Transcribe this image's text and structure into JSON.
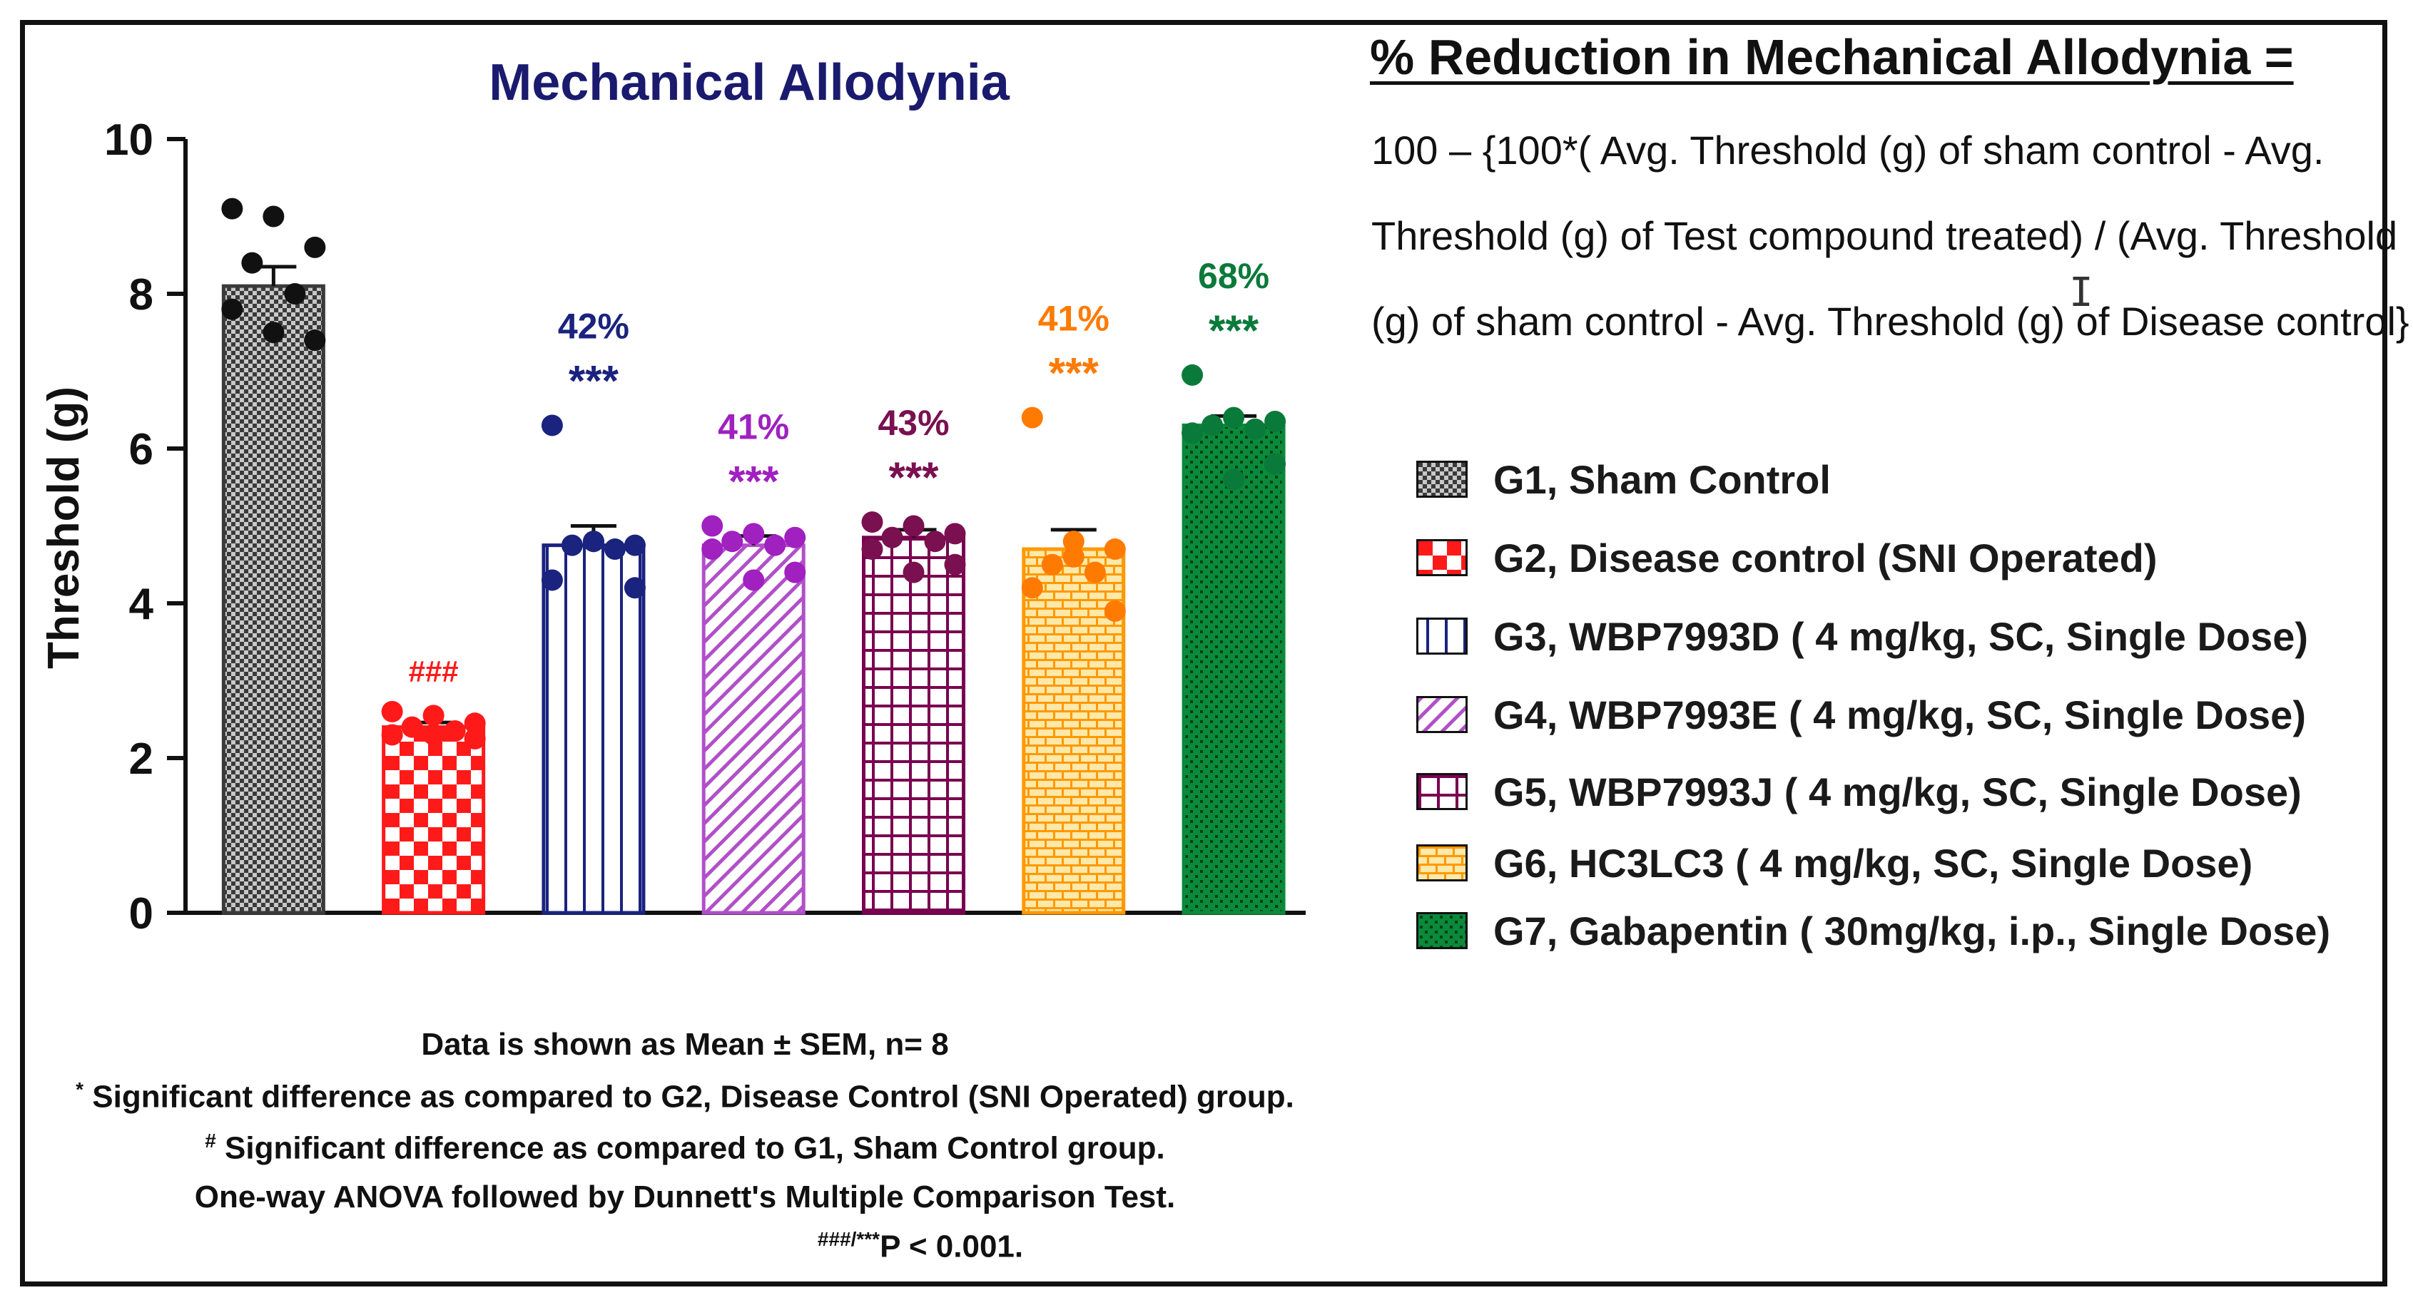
{
  "chart_data": {
    "type": "bar",
    "title": "Mechanical Allodynia",
    "xlabel": "",
    "ylabel": "Threshold (g)",
    "ylim": [
      0,
      10
    ],
    "yticks": [
      0,
      2,
      4,
      6,
      8,
      10
    ],
    "categories": [
      "G1",
      "G2",
      "G3",
      "G4",
      "G5",
      "G6",
      "G7"
    ],
    "values": [
      8.1,
      2.4,
      4.75,
      4.75,
      4.85,
      4.7,
      6.3
    ],
    "sem": [
      0.25,
      0.06,
      0.25,
      0.12,
      0.1,
      0.25,
      0.12
    ],
    "points": [
      [
        9.1,
        9.0,
        8.6,
        8.4,
        8.0,
        7.8,
        7.4,
        7.5
      ],
      [
        2.6,
        2.55,
        2.45,
        2.4,
        2.35,
        2.3,
        2.25,
        2.3
      ],
      [
        6.3,
        4.8,
        4.75,
        4.75,
        4.7,
        4.3,
        4.2,
        4.8
      ],
      [
        5.0,
        4.9,
        4.85,
        4.8,
        4.75,
        4.7,
        4.4,
        4.3
      ],
      [
        5.05,
        5.0,
        4.9,
        4.85,
        4.8,
        4.7,
        4.5,
        4.4
      ],
      [
        6.4,
        4.8,
        4.7,
        4.5,
        4.4,
        4.2,
        3.9,
        4.6
      ],
      [
        6.95,
        6.4,
        6.35,
        6.3,
        6.25,
        6.2,
        5.8,
        5.6
      ]
    ],
    "annotations": [
      {
        "sig": "",
        "pct": ""
      },
      {
        "sig": "###",
        "pct": ""
      },
      {
        "sig": "***",
        "pct": "42%"
      },
      {
        "sig": "***",
        "pct": "41%"
      },
      {
        "sig": "***",
        "pct": "43%"
      },
      {
        "sig": "***",
        "pct": "41%"
      },
      {
        "sig": "***",
        "pct": "68%"
      }
    ],
    "series_colors": [
      "#3a3a3a",
      "#ff1a1a",
      "#1a237e",
      "#b050c8",
      "#7a0050",
      "#ff9900",
      "#0a8a3a"
    ],
    "annotation_colors": [
      "#333333",
      "#ff1a1a",
      "#1a237e",
      "#a020c0",
      "#7a1050",
      "#ff7a00",
      "#0a7a3a"
    ],
    "patterns": [
      "checker-fine",
      "checker-large",
      "vertical",
      "diagonal",
      "grid",
      "brick",
      "dots"
    ]
  },
  "formula": {
    "title": "% Reduction in Mechanical Allodynia =",
    "lines": [
      "100 – {100*( Avg. Threshold (g) of  sham control - Avg.",
      "Threshold (g) of Test compound treated) / (Avg. Threshold",
      "(g) of  sham control - Avg. Threshold (g) of Disease control}"
    ]
  },
  "legend": [
    {
      "label": "G1, Sham Control",
      "pattern": "checker-fine",
      "color": "#3a3a3a"
    },
    {
      "label": "G2, Disease control (SNI Operated)",
      "pattern": "checker-large",
      "color": "#ff1a1a"
    },
    {
      "label": "G3, WBP7993D ( 4 mg/kg, SC, Single Dose)",
      "pattern": "vertical",
      "color": "#1a237e"
    },
    {
      "label": "G4, WBP7993E ( 4 mg/kg, SC, Single Dose)",
      "pattern": "diagonal",
      "color": "#b050c8"
    },
    {
      "label": "G5, WBP7993J ( 4 mg/kg, SC, Single Dose)",
      "pattern": "grid",
      "color": "#7a0050"
    },
    {
      "label": "G6, HC3LC3 ( 4 mg/kg, SC, Single Dose)",
      "pattern": "brick",
      "color": "#ff9900"
    },
    {
      "label": "G7, Gabapentin ( 30mg/kg, i.p., Single Dose)",
      "pattern": "dots",
      "color": "#0a8a3a"
    }
  ],
  "footnotes": {
    "line1": "Data is shown as Mean ± SEM, n= 8",
    "line2_mark": "*",
    "line2": " Significant difference as compared to G2, Disease Control (SNI Operated) group.",
    "line3_mark": "#",
    "line3": " Significant difference as compared to  G1, Sham Control  group.",
    "line4": "One-way ANOVA followed by  Dunnett's Multiple Comparison Test.",
    "line5_mark": "###/***",
    "line5": "P < 0.001."
  }
}
